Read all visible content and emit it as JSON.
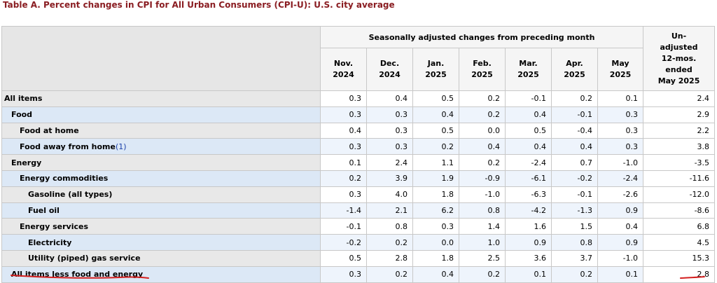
{
  "title": "Table A. Percent changes in CPI for All Urban Consumers (CPI-U): U.S. city average",
  "header": {
    "seasonal_label": "Seasonally adjusted changes from preceding month",
    "months": [
      {
        "month": "Nov.",
        "year": "2024"
      },
      {
        "month": "Dec.",
        "year": "2024"
      },
      {
        "month": "Jan.",
        "year": "2025"
      },
      {
        "month": "Feb.",
        "year": "2025"
      },
      {
        "month": "Mar.",
        "year": "2025"
      },
      {
        "month": "Apr.",
        "year": "2025"
      },
      {
        "month": "May",
        "year": "2025"
      }
    ],
    "unadjusted_lines": [
      "Un-",
      "adjusted",
      "12-mos.",
      "ended",
      "May 2025"
    ]
  },
  "rows": [
    {
      "label": "All items",
      "level": 0,
      "footnote": "",
      "values": [
        "0.3",
        "0.4",
        "0.5",
        "0.2",
        "-0.1",
        "0.2",
        "0.1"
      ],
      "annual": "2.4"
    },
    {
      "label": "Food",
      "level": 1,
      "footnote": "",
      "values": [
        "0.3",
        "0.3",
        "0.4",
        "0.2",
        "0.4",
        "-0.1",
        "0.3"
      ],
      "annual": "2.9"
    },
    {
      "label": "Food at home",
      "level": 2,
      "footnote": "",
      "values": [
        "0.4",
        "0.3",
        "0.5",
        "0.0",
        "0.5",
        "-0.4",
        "0.3"
      ],
      "annual": "2.2"
    },
    {
      "label": "Food away from home",
      "level": 2,
      "footnote": "(1)",
      "values": [
        "0.3",
        "0.3",
        "0.2",
        "0.4",
        "0.4",
        "0.4",
        "0.3"
      ],
      "annual": "3.8"
    },
    {
      "label": "Energy",
      "level": 1,
      "footnote": "",
      "values": [
        "0.1",
        "2.4",
        "1.1",
        "0.2",
        "-2.4",
        "0.7",
        "-1.0"
      ],
      "annual": "-3.5"
    },
    {
      "label": "Energy commodities",
      "level": 2,
      "footnote": "",
      "values": [
        "0.2",
        "3.9",
        "1.9",
        "-0.9",
        "-6.1",
        "-0.2",
        "-2.4"
      ],
      "annual": "-11.6"
    },
    {
      "label": "Gasoline (all types)",
      "level": 3,
      "footnote": "",
      "values": [
        "0.3",
        "4.0",
        "1.8",
        "-1.0",
        "-6.3",
        "-0.1",
        "-2.6"
      ],
      "annual": "-12.0"
    },
    {
      "label": "Fuel oil",
      "level": 3,
      "footnote": "",
      "values": [
        "-1.4",
        "2.1",
        "6.2",
        "0.8",
        "-4.2",
        "-1.3",
        "0.9"
      ],
      "annual": "-8.6"
    },
    {
      "label": "Energy services",
      "level": 2,
      "footnote": "",
      "values": [
        "-0.1",
        "0.8",
        "0.3",
        "1.4",
        "1.6",
        "1.5",
        "0.4"
      ],
      "annual": "6.8"
    },
    {
      "label": "Electricity",
      "level": 3,
      "footnote": "",
      "values": [
        "-0.2",
        "0.2",
        "0.0",
        "1.0",
        "0.9",
        "0.8",
        "0.9"
      ],
      "annual": "4.5"
    },
    {
      "label": "Utility (piped) gas service",
      "level": 3,
      "footnote": "",
      "values": [
        "0.5",
        "2.8",
        "1.8",
        "2.5",
        "3.6",
        "3.7",
        "-1.0"
      ],
      "annual": "15.3"
    },
    {
      "label": "All items less food and energy",
      "level": 1,
      "footnote": "",
      "values": [
        "0.3",
        "0.2",
        "0.4",
        "0.2",
        "0.1",
        "0.2",
        "0.1"
      ],
      "annual": "2.8"
    }
  ],
  "colors": {
    "title": "#8a1d22",
    "footnote_link": "#1a3fa8",
    "annotation_ink": "#d42020",
    "row_band_label": "#dce8f6",
    "row_band_cells": "#eef4fc"
  }
}
